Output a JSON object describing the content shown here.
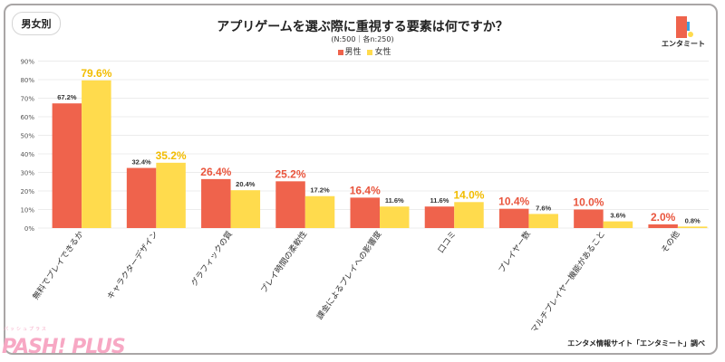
{
  "badge": "男女別",
  "watermark": "PASH! PLUS",
  "watermark_kana": "パッシュプラス",
  "logo_text": "エンタミート",
  "source": "エンタメ情報サイト「エンタミート」調べ",
  "colors": {
    "male": "#EF634C",
    "female": "#FFDB4D",
    "male_highlight": "#E9553D",
    "female_highlight": "#F2BC00"
  },
  "chart_data": {
    "type": "bar",
    "title": "アプリゲームを選ぶ際に重視する要素は何ですか？",
    "subtitle": "(N:500｜各n:250)",
    "legend_placement": "top",
    "grid": true,
    "ylim": [
      0,
      90
    ],
    "yticks": [
      "0%",
      "10%",
      "20%",
      "30%",
      "40%",
      "50%",
      "60%",
      "70%",
      "80%",
      "90%"
    ],
    "categories": [
      "無料でプレイできるか",
      "キャラクターデザイン",
      "グラフィックの質",
      "プレイ時間の柔軟性",
      "課金によるプレイへの影響度",
      "口コミ",
      "プレイヤー数",
      "マルチプレイヤー機能があること",
      "その他"
    ],
    "series": [
      {
        "name": "男性",
        "values": [
          67.2,
          32.4,
          26.4,
          25.2,
          16.4,
          11.6,
          10.4,
          10.0,
          2.0
        ],
        "labels": [
          "67.2%",
          "32.4%",
          "26.4%",
          "25.2%",
          "16.4%",
          "11.6%",
          "10.4%",
          "10.0%",
          "2.0%"
        ]
      },
      {
        "name": "女性",
        "values": [
          79.6,
          35.2,
          20.4,
          17.2,
          11.6,
          14.0,
          7.6,
          3.6,
          0.8
        ],
        "labels": [
          "79.6%",
          "35.2%",
          "20.4%",
          "17.2%",
          "11.6%",
          "14.0%",
          "7.6%",
          "3.6%",
          "0.8%"
        ]
      }
    ]
  }
}
